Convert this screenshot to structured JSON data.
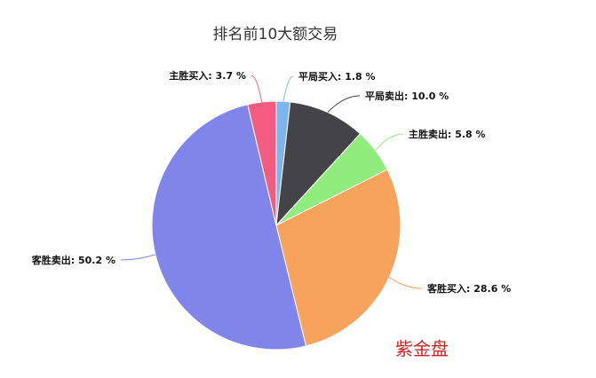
{
  "chart_data": {
    "type": "pie",
    "title": "排名前10大额交易",
    "slices": [
      {
        "label": "平局买入",
        "value": 1.8,
        "color": "#7cb5ec",
        "text": "平局买入: 1.8 %"
      },
      {
        "label": "平局卖出",
        "value": 10.0,
        "color": "#434348",
        "text": "平局卖出: 10.0 %"
      },
      {
        "label": "主胜卖出",
        "value": 5.8,
        "color": "#90ed7d",
        "text": "主胜卖出: 5.8 %"
      },
      {
        "label": "客胜买入",
        "value": 28.6,
        "color": "#f7a35c",
        "text": "客胜买入: 28.6 %"
      },
      {
        "label": "客胜卖出",
        "value": 50.2,
        "color": "#8085e9",
        "text": "客胜卖出: 50.2 %"
      },
      {
        "label": "主胜买入",
        "value": 3.7,
        "color": "#f15c80",
        "text": "主胜买入: 3.7 %"
      }
    ],
    "legend": "none",
    "watermark": "紫金盘"
  }
}
